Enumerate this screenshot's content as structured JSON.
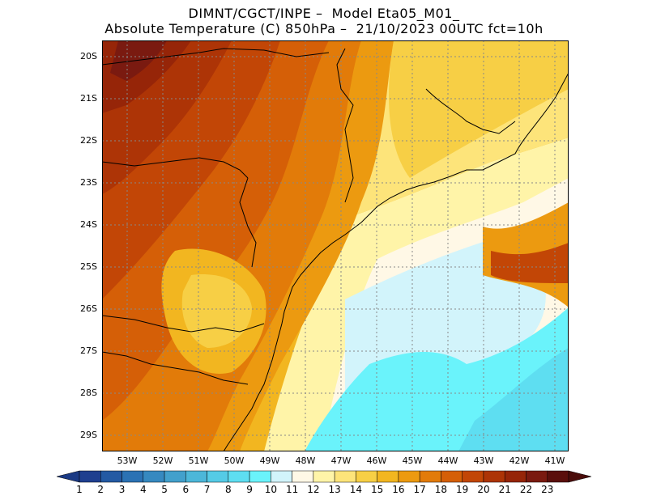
{
  "header": {
    "line1": "DIMNT/CGCT/INPE –  Model Eta05_M01_",
    "line2": "Absolute Temperature (C) 850hPa –  21/10/2023 00UTC fct=10h"
  },
  "map": {
    "lat_labels": [
      "20S",
      "21S",
      "22S",
      "23S",
      "24S",
      "25S",
      "26S",
      "27S",
      "28S",
      "29S"
    ],
    "lon_labels": [
      "53W",
      "52W",
      "51W",
      "50W",
      "49W",
      "48W",
      "47W",
      "46W",
      "45W",
      "44W",
      "43W",
      "42W",
      "41W"
    ]
  },
  "colorbar": {
    "labels": [
      "1",
      "2",
      "3",
      "4",
      "5",
      "6",
      "7",
      "8",
      "9",
      "10",
      "11",
      "12",
      "13",
      "14",
      "15",
      "16",
      "17",
      "18",
      "19",
      "20",
      "21",
      "22",
      "23"
    ],
    "colors": [
      "#1f3f8f",
      "#245aa3",
      "#2b72b4",
      "#3689c0",
      "#42a0cc",
      "#4cb7d9",
      "#55cbe6",
      "#5edef1",
      "#6af3fb",
      "#d2f4fb",
      "#fff8e6",
      "#fff4a8",
      "#fde47a",
      "#f7cf45",
      "#f2b620",
      "#ec9a10",
      "#e27b09",
      "#d55f07",
      "#c24606",
      "#ad3406",
      "#962508",
      "#7a1a10",
      "#5a0f0c"
    ],
    "left_arrow_color": "#1b3a85",
    "right_arrow_color": "#4a0c0a"
  }
}
